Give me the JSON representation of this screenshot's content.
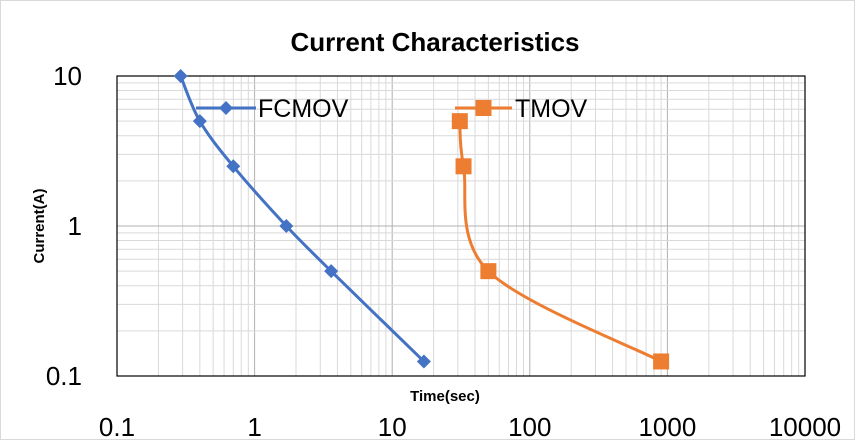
{
  "chart_data": {
    "type": "line",
    "title": "Current Characteristics",
    "xlabel": "Time(sec)",
    "ylabel": "Current(A)",
    "xscale": "log",
    "yscale": "log",
    "xlim": [
      0.1,
      10000
    ],
    "ylim": [
      0.1,
      10
    ],
    "xticks": [
      0.1,
      1,
      10,
      100,
      1000,
      10000
    ],
    "xtick_labels": [
      "0.1",
      "1",
      "10",
      "100",
      "1000",
      "10000"
    ],
    "yticks": [
      0.1,
      1,
      10
    ],
    "ytick_labels": [
      "0.1",
      "1",
      "10"
    ],
    "grid": "major and minor",
    "legend_position": "top, inside plot",
    "series": [
      {
        "name": "FCMOV",
        "color": "#4472C4",
        "marker": "diamond",
        "points": [
          {
            "x": 0.29,
            "y": 10
          },
          {
            "x": 0.4,
            "y": 5
          },
          {
            "x": 0.7,
            "y": 2.5
          },
          {
            "x": 1.7,
            "y": 1
          },
          {
            "x": 3.6,
            "y": 0.5
          },
          {
            "x": 17,
            "y": 0.125
          }
        ]
      },
      {
        "name": "TMOV",
        "color": "#ED7D31",
        "marker": "square",
        "points": [
          {
            "x": 31,
            "y": 5
          },
          {
            "x": 33,
            "y": 2.5
          },
          {
            "x": 50,
            "y": 0.5
          },
          {
            "x": 900,
            "y": 0.125
          }
        ]
      }
    ]
  }
}
